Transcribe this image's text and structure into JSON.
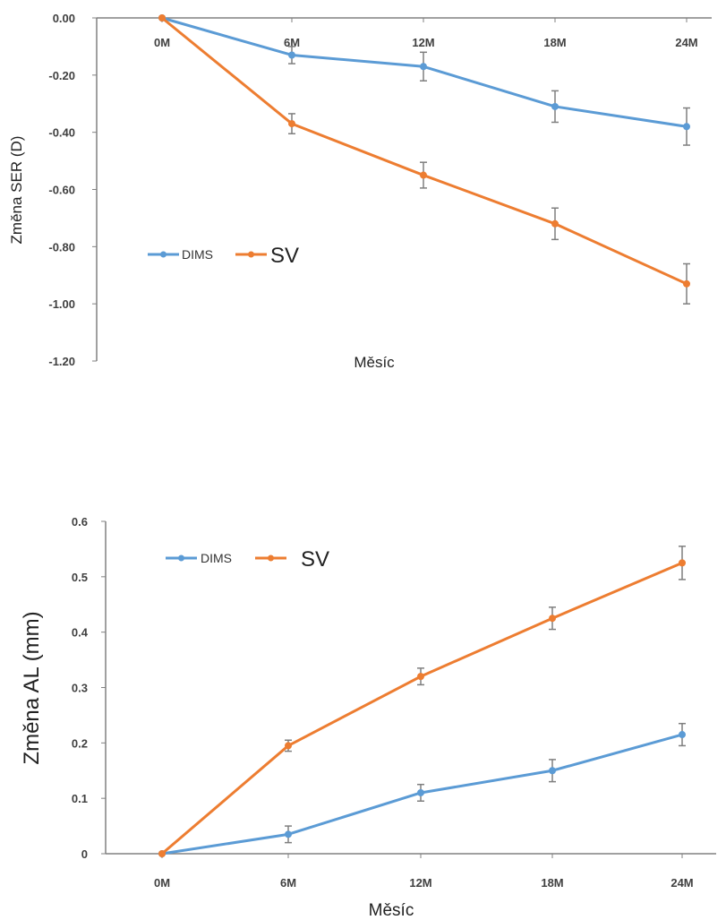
{
  "colors": {
    "series_1": "#5b9bd5",
    "series_2": "#ed7d31",
    "axis": "#808080",
    "error_bar": "#7f7f7f"
  },
  "chart_data": [
    {
      "type": "line",
      "title": "",
      "ylabel": "Změna SER (D)",
      "xlabel": "Měsíc",
      "categories": [
        "0M",
        "6M",
        "12M",
        "18M",
        "24M"
      ],
      "ylim": [
        -1.2,
        0.0
      ],
      "yticks": [
        "0.00",
        "-0.20",
        "-0.40",
        "-0.60",
        "-0.80",
        "-1.00",
        "-1.20"
      ],
      "ytick_values": [
        0.0,
        -0.2,
        -0.4,
        -0.6,
        -0.8,
        -1.0,
        -1.2
      ],
      "category_labels_position": "top",
      "legend": {
        "position": "bottom-left",
        "entries": [
          "DIMS",
          "SV"
        ]
      },
      "grid": false,
      "series": [
        {
          "name": "DIMS",
          "color": "#5b9bd5",
          "values": [
            0.0,
            -0.13,
            -0.17,
            -0.31,
            -0.38
          ],
          "errors": [
            0.0,
            0.03,
            0.05,
            0.055,
            0.065
          ]
        },
        {
          "name": "SV",
          "color": "#ed7d31",
          "values": [
            0.0,
            -0.37,
            -0.55,
            -0.72,
            -0.93
          ],
          "errors": [
            0.0,
            0.035,
            0.045,
            0.055,
            0.07
          ]
        }
      ]
    },
    {
      "type": "line",
      "title": "",
      "ylabel": "Změna AL (mm)",
      "xlabel": "Měsíc",
      "categories": [
        "0M",
        "6M",
        "12M",
        "18M",
        "24M"
      ],
      "ylim": [
        0,
        0.6
      ],
      "yticks": [
        "0",
        "0.1",
        "0.2",
        "0.3",
        "0.4",
        "0.5",
        "0.6"
      ],
      "ytick_values": [
        0,
        0.1,
        0.2,
        0.3,
        0.4,
        0.5,
        0.6
      ],
      "category_labels_position": "bottom",
      "legend": {
        "position": "top-left",
        "entries": [
          "DIMS",
          "SV"
        ]
      },
      "grid": false,
      "series": [
        {
          "name": "DIMS",
          "color": "#5b9bd5",
          "values": [
            0.0,
            0.035,
            0.11,
            0.15,
            0.215
          ],
          "errors": [
            0.0,
            0.015,
            0.015,
            0.02,
            0.02
          ]
        },
        {
          "name": "SV",
          "color": "#ed7d31",
          "values": [
            0.0,
            0.195,
            0.32,
            0.425,
            0.525
          ],
          "errors": [
            0.0,
            0.01,
            0.015,
            0.02,
            0.03
          ]
        }
      ]
    }
  ]
}
